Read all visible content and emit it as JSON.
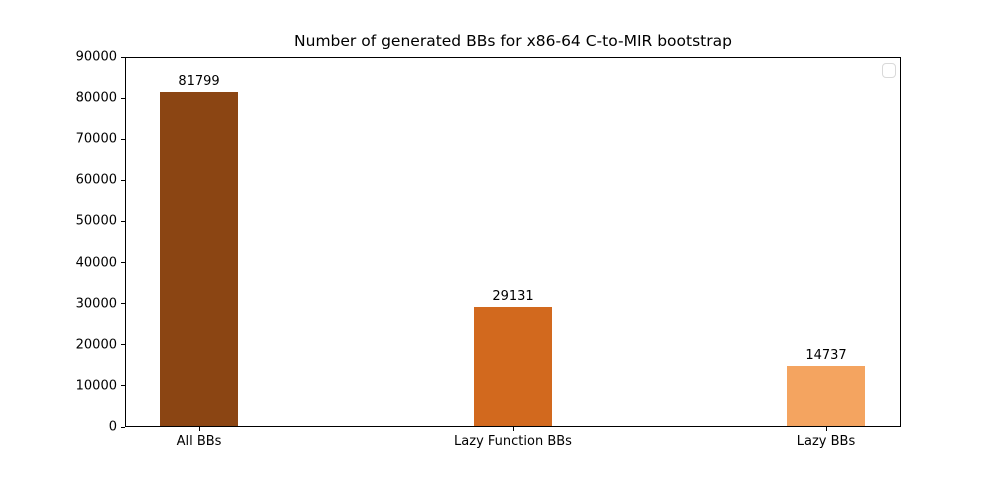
{
  "chart_data": {
    "type": "bar",
    "title": "Number of generated BBs for x86-64 C-to-MIR bootstrap",
    "categories": [
      "All BBs",
      "Lazy Function BBs",
      "Lazy BBs"
    ],
    "values": [
      81799,
      29131,
      14737
    ],
    "bar_colors": [
      "#8b4513",
      "#d2691e",
      "#f4a460"
    ],
    "xlabel": "",
    "ylabel": "",
    "ylim": [
      0,
      90000
    ],
    "yticks": [
      0,
      10000,
      20000,
      30000,
      40000,
      50000,
      60000,
      70000,
      80000,
      90000
    ],
    "grid": false,
    "plot_background": "#ffffff",
    "axis_color": "#000000",
    "legend": {
      "visible": true,
      "entries": [],
      "position": "upper-right"
    }
  }
}
